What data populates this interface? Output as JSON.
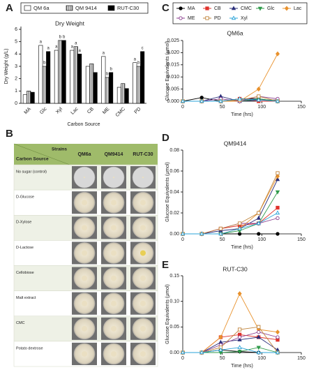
{
  "chart_data": [
    {
      "type": "bar",
      "panel_label": "A",
      "title": "Dry Weight",
      "y_label": "Dry Weight (g/L)",
      "x_label": "Carbon Source",
      "categories": [
        "MA",
        "Glc",
        "Xyl",
        "Lac",
        "CB",
        "ME",
        "CMC",
        "PD"
      ],
      "ylim": [
        0,
        6
      ],
      "yticks": [
        0,
        1,
        2,
        3,
        4,
        5,
        6
      ],
      "series": [
        {
          "name": "QM 6a",
          "color": "#ffffff",
          "hatch": false,
          "values": [
            0.7,
            4.7,
            4.3,
            4.3,
            3.0,
            3.8,
            1.3,
            3.3
          ],
          "letters": [
            null,
            "a",
            "a",
            "a",
            null,
            "a",
            null,
            "a"
          ]
        },
        {
          "name": "QM 9414",
          "color": "#bbbbbb",
          "hatch": true,
          "values": [
            1.0,
            3.0,
            5.1,
            4.6,
            3.2,
            2.1,
            1.6,
            3.0
          ],
          "letters": [
            null,
            "b",
            "b",
            "a",
            null,
            "b",
            null,
            "b"
          ]
        },
        {
          "name": "RUT-C30",
          "color": "#000000",
          "hatch": false,
          "values": [
            0.9,
            4.2,
            5.1,
            4.0,
            2.5,
            2.5,
            1.2,
            4.2
          ],
          "letters": [
            null,
            "a",
            "b",
            "a",
            null,
            "b",
            null,
            "c"
          ]
        }
      ]
    },
    {
      "type": "line",
      "panel_label": "C",
      "title": "QM6a",
      "y_label": "Glucose Equivalents (μmol)",
      "x_label": "Time (hrs)",
      "legend": true,
      "x": [
        0,
        24,
        48,
        72,
        96,
        120
      ],
      "xlim": [
        0,
        150
      ],
      "xticks": [
        0,
        50,
        100,
        150
      ],
      "ylim": [
        0,
        0.025
      ],
      "yticks": [
        {
          "value": 0,
          "label": "0.000"
        },
        {
          "value": 0.005,
          "label": "0.005"
        },
        {
          "value": 0.01,
          "label": "0.010"
        },
        {
          "value": 0.015,
          "label": "0.015"
        },
        {
          "value": 0.02,
          "label": "0.020"
        },
        {
          "value": 0.025,
          "label": "0.025"
        }
      ],
      "series": [
        {
          "name": "MA",
          "color": "#000000",
          "marker": "circle",
          "filled": true,
          "values": [
            0,
            0.0015,
            0,
            0.001,
            0.001,
            0
          ]
        },
        {
          "name": "CB",
          "color": "#e0332c",
          "marker": "square",
          "filled": true,
          "values": [
            0,
            0,
            0,
            0.001,
            0,
            0
          ]
        },
        {
          "name": "CMC",
          "color": "#2b2f7a",
          "marker": "triangle",
          "filled": true,
          "values": [
            0,
            0,
            0.002,
            0,
            0.0005,
            0.0005
          ]
        },
        {
          "name": "Glc",
          "color": "#2f9a4a",
          "marker": "triangle-down",
          "filled": true,
          "values": [
            0,
            0,
            0,
            0,
            0.001,
            0
          ]
        },
        {
          "name": "Lac",
          "color": "#e8912c",
          "marker": "diamond",
          "filled": true,
          "values": [
            0,
            0,
            0,
            0,
            0.005,
            0.0195
          ]
        },
        {
          "name": "ME",
          "color": "#8b3f8f",
          "marker": "circle",
          "filled": false,
          "values": [
            0,
            0,
            0.001,
            0,
            0.002,
            0.001
          ]
        },
        {
          "name": "PD",
          "color": "#c0843c",
          "marker": "square",
          "filled": false,
          "values": [
            0,
            0,
            0,
            0.0005,
            0.002,
            0
          ]
        },
        {
          "name": "Xyl",
          "color": "#2aa3d8",
          "marker": "triangle",
          "filled": false,
          "values": [
            0,
            0,
            0,
            0.001,
            0.0005,
            0
          ]
        }
      ]
    },
    {
      "type": "line",
      "panel_label": "D",
      "title": "QM9414",
      "y_label": "Glucose Equivalents (μmol)",
      "x_label": "Time (hrs)",
      "legend": false,
      "x": [
        0,
        24,
        48,
        72,
        96,
        120
      ],
      "xlim": [
        0,
        150
      ],
      "xticks": [
        0,
        50,
        100,
        150
      ],
      "ylim": [
        0,
        0.08
      ],
      "yticks": [
        {
          "value": 0,
          "label": "0.00"
        },
        {
          "value": 0.02,
          "label": "0.02"
        },
        {
          "value": 0.04,
          "label": "0.04"
        },
        {
          "value": 0.06,
          "label": "0.06"
        },
        {
          "value": 0.08,
          "label": "0.08"
        }
      ],
      "series": [
        {
          "color": "#000000",
          "marker": "circle",
          "filled": true,
          "values": [
            0,
            0,
            0,
            0,
            0,
            0
          ]
        },
        {
          "color": "#e0332c",
          "marker": "square",
          "filled": true,
          "values": [
            0,
            0,
            0.005,
            0.008,
            0.01,
            0.025
          ]
        },
        {
          "color": "#2b2f7a",
          "marker": "triangle",
          "filled": true,
          "values": [
            0,
            0,
            0.003,
            0.005,
            0.015,
            0.052
          ]
        },
        {
          "color": "#2f9a4a",
          "marker": "triangle-down",
          "filled": true,
          "values": [
            0,
            0,
            0,
            0.003,
            0.01,
            0.04
          ]
        },
        {
          "color": "#e8912c",
          "marker": "diamond",
          "filled": true,
          "values": [
            0,
            0,
            0,
            0.005,
            0.02,
            0.055
          ]
        },
        {
          "color": "#8b3f8f",
          "marker": "circle",
          "filled": false,
          "values": [
            0,
            0,
            0.005,
            0.01,
            0.01,
            0.015
          ]
        },
        {
          "color": "#c0843c",
          "marker": "square",
          "filled": false,
          "values": [
            0,
            0,
            0.005,
            0.01,
            0.02,
            0.058
          ]
        },
        {
          "color": "#2aa3d8",
          "marker": "triangle",
          "filled": false,
          "values": [
            0,
            0,
            0,
            0.005,
            0.01,
            0.02
          ]
        }
      ]
    },
    {
      "type": "line",
      "panel_label": "E",
      "title": "RUT-C30",
      "y_label": "Glucose Equivalents (μmol)",
      "x_label": "Time (hrs)",
      "legend": false,
      "x": [
        0,
        24,
        48,
        72,
        96,
        120
      ],
      "xlim": [
        0,
        150
      ],
      "xticks": [
        0,
        50,
        100,
        150
      ],
      "ylim": [
        0,
        0.15
      ],
      "yticks": [
        {
          "value": 0,
          "label": "0.00"
        },
        {
          "value": 0.05,
          "label": "0.05"
        },
        {
          "value": 0.1,
          "label": "0.10"
        },
        {
          "value": 0.15,
          "label": "0.15"
        }
      ],
      "series": [
        {
          "color": "#000000",
          "marker": "circle",
          "filled": true,
          "values": [
            0,
            0,
            0.005,
            0.002,
            0,
            0
          ]
        },
        {
          "color": "#e0332c",
          "marker": "square",
          "filled": true,
          "values": [
            0,
            0,
            0.03,
            0.035,
            0.03,
            0.025
          ]
        },
        {
          "color": "#2b2f7a",
          "marker": "triangle",
          "filled": true,
          "values": [
            0,
            0,
            0.02,
            0.025,
            0.03,
            0.005
          ]
        },
        {
          "color": "#2f9a4a",
          "marker": "triangle-down",
          "filled": true,
          "values": [
            0,
            0,
            0,
            0.002,
            0.01,
            0
          ]
        },
        {
          "color": "#e8912c",
          "marker": "diamond",
          "filled": true,
          "values": [
            0,
            0,
            0.03,
            0.115,
            0.045,
            0.04
          ]
        },
        {
          "color": "#8b3f8f",
          "marker": "circle",
          "filled": false,
          "values": [
            0,
            0,
            0.015,
            0.03,
            0.04,
            0.03
          ]
        },
        {
          "color": "#c0843c",
          "marker": "square",
          "filled": false,
          "values": [
            0,
            0,
            0.01,
            0.045,
            0.05,
            0
          ]
        },
        {
          "color": "#2aa3d8",
          "marker": "triangle",
          "filled": false,
          "values": [
            0,
            0,
            0.005,
            0.01,
            0,
            0
          ]
        }
      ]
    }
  ],
  "table": {
    "panel_label": "B",
    "corner_top": "Strains",
    "corner_bottom": "Carbon Source",
    "columns": [
      "QM6a",
      "QM9414",
      "RUT-C30"
    ],
    "rows": [
      "No sugar (control)",
      "D-Glucose",
      "D-Xylose",
      "D-Lactose",
      "Cellobiose",
      "Malt extract",
      "CMC",
      "Potato dextrose"
    ]
  }
}
